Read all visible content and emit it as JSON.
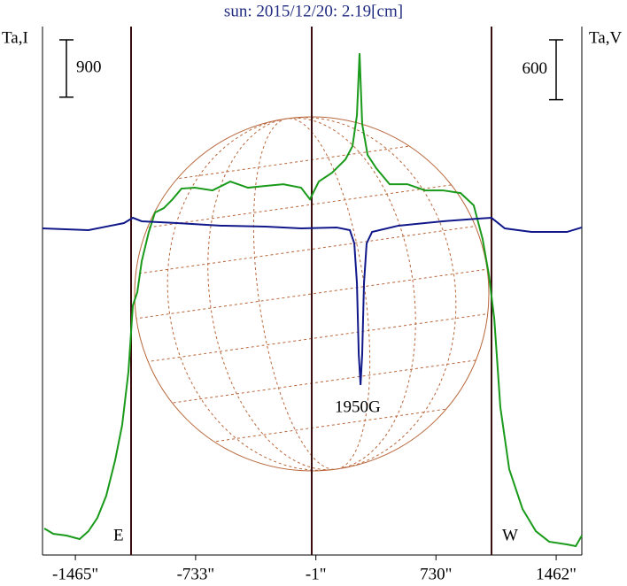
{
  "chart_data": {
    "type": "line",
    "title": "sun: 2015/12/20: 2.19[cm]",
    "y_label": "Ta,I",
    "y2_label": "Ta,V",
    "y_scale_bar": 900,
    "y2_scale_bar": 600,
    "xlim": [
      -1665,
      1618
    ],
    "xticks": [
      {
        "value": -1465,
        "label": "-1465\""
      },
      {
        "value": -733,
        "label": "-733\""
      },
      {
        "value": -1,
        "label": "-1\""
      },
      {
        "value": 730,
        "label": "730\""
      },
      {
        "value": 1462,
        "label": "1462\""
      }
    ],
    "ylim": [
      0,
      8300
    ],
    "y2lim": [
      -3300,
      2000
    ],
    "annotations": [
      "E",
      "W",
      "1950G"
    ],
    "series": [
      {
        "name": "I",
        "color": "#1a9a1a",
        "x": [
          -1654,
          -1600,
          -1519,
          -1439,
          -1385,
          -1331,
          -1277,
          -1223,
          -1180,
          -1142,
          -1115,
          -1088,
          -1061,
          -1018,
          -980,
          -926,
          -873,
          -819,
          -738,
          -630,
          -522,
          -414,
          -306,
          -199,
          -91,
          -37,
          17,
          98,
          179,
          222,
          249,
          265,
          281,
          314,
          367,
          448,
          556,
          664,
          772,
          880,
          960,
          1014,
          1052,
          1085,
          1122,
          1176,
          1257,
          1338,
          1419,
          1527,
          1581,
          1618
        ],
        "values": [
          417,
          334,
          306,
          250,
          375,
          584,
          931,
          1487,
          2043,
          2877,
          3920,
          4128,
          4615,
          5074,
          5379,
          5449,
          5588,
          5755,
          5769,
          5727,
          5866,
          5769,
          5797,
          5824,
          5769,
          5588,
          5866,
          6005,
          6213,
          6422,
          6908,
          7881,
          6769,
          6283,
          6074,
          5824,
          5824,
          5727,
          5727,
          5685,
          5491,
          4962,
          4406,
          3711,
          2321,
          1348,
          723,
          375,
          209,
          167,
          139,
          306
        ]
      },
      {
        "name": "V",
        "color": "#10188a",
        "axis": "y2",
        "x": [
          -1665,
          -1385,
          -1169,
          -1115,
          -1061,
          -846,
          -576,
          -306,
          -91,
          125,
          206,
          233,
          249,
          260,
          271,
          281,
          292,
          308,
          341,
          502,
          772,
          987,
          1068,
          1149,
          1311,
          1527,
          1618
        ],
        "values": [
          -24,
          -42,
          29,
          82,
          47,
          29,
          3,
          -6,
          -24,
          -15,
          -42,
          -175,
          -574,
          -1285,
          -1595,
          -1285,
          -574,
          -175,
          -60,
          3,
          47,
          74,
          82,
          -24,
          -60,
          -60,
          -15
        ]
      }
    ]
  }
}
